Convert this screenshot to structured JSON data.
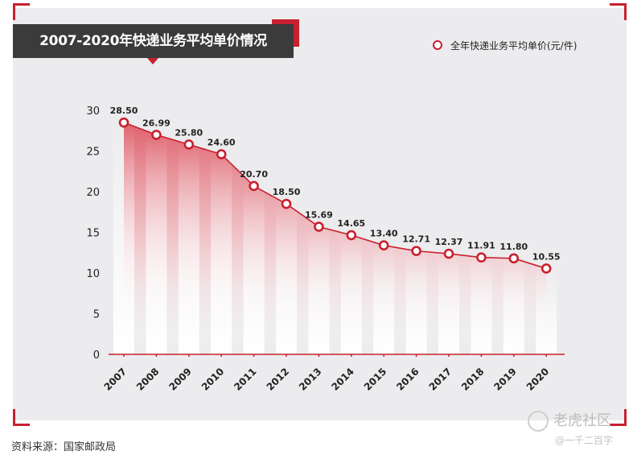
{
  "title": "2007-2020年快递业务平均单价情况",
  "source_note": "资料来源：国家邮政局",
  "watermark": {
    "main": "老虎社区",
    "sub": "@一千二百字"
  },
  "colors": {
    "accent": "#c8202f",
    "panel": "#ececee",
    "title_bg": "#3b3b3b"
  },
  "chart_data": {
    "type": "area",
    "title": "2007-2020年快递业务平均单价情况",
    "xlabel": "",
    "ylabel": "",
    "ylim": [
      0,
      30
    ],
    "yticks": [
      0,
      5,
      10,
      15,
      20,
      25,
      30
    ],
    "categories": [
      "2007",
      "2008",
      "2009",
      "2010",
      "2011",
      "2012",
      "2013",
      "2014",
      "2015",
      "2016",
      "2017",
      "2018",
      "2019",
      "2020"
    ],
    "series": [
      {
        "name": "全年快递业务平均单价(元/件)",
        "values": [
          28.5,
          26.99,
          25.8,
          24.6,
          20.7,
          18.5,
          15.69,
          14.65,
          13.4,
          12.71,
          12.37,
          11.91,
          11.8,
          10.55
        ],
        "labels": [
          "28.50",
          "26.99",
          "25.80",
          "24.60",
          "20.70",
          "18.50",
          "15.69",
          "14.65",
          "13.40",
          "12.71",
          "12.37",
          "11.91",
          "11.80",
          "10.55"
        ]
      }
    ],
    "grid": false,
    "legend_position": "top-right"
  }
}
